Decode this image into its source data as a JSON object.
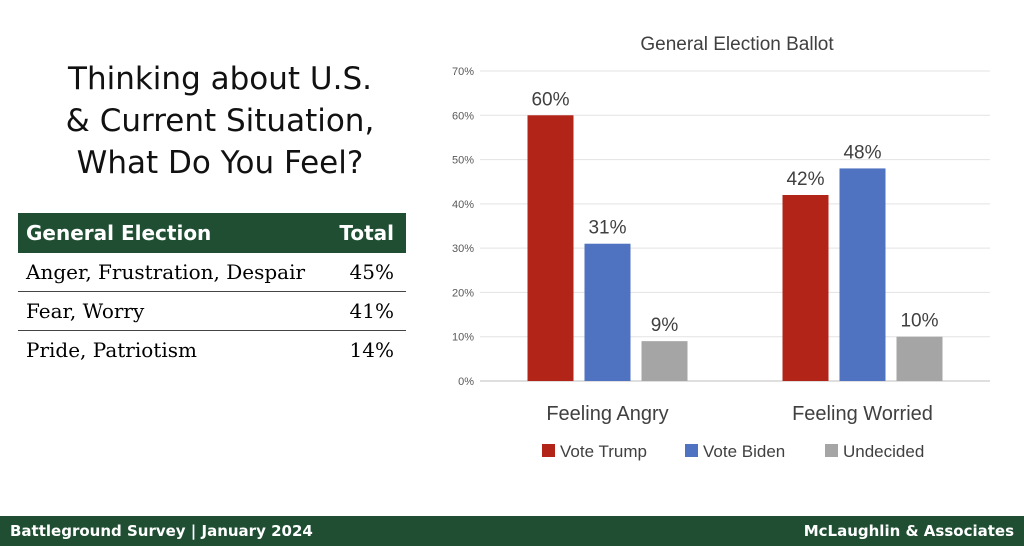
{
  "heading": {
    "line1": "Thinking about U.S.",
    "line2": "& Current Situation,",
    "line3": "What Do You Feel?"
  },
  "table": {
    "header": {
      "label": "General Election",
      "value": "Total"
    },
    "rows": [
      {
        "label": "Anger, Frustration, Despair",
        "value": "45%"
      },
      {
        "label": "Fear, Worry",
        "value": "41%"
      },
      {
        "label": "Pride, Patriotism",
        "value": "14%"
      }
    ]
  },
  "chart_data": {
    "type": "bar",
    "title": "General Election Ballot",
    "categories": [
      "Feeling Angry",
      "Feeling Worried"
    ],
    "series": [
      {
        "name": "Vote Trump",
        "values": [
          60,
          42
        ],
        "labels": [
          "60%",
          "42%"
        ],
        "color": "#b22418"
      },
      {
        "name": "Vote Biden",
        "values": [
          31,
          48
        ],
        "labels": [
          "31%",
          "48%"
        ],
        "color": "#4f72c1"
      },
      {
        "name": "Undecided",
        "values": [
          9,
          10
        ],
        "labels": [
          "9%",
          "10%"
        ],
        "color": "#a5a5a5"
      }
    ],
    "ylim": [
      0,
      70
    ],
    "yticks": [
      "0%",
      "10%",
      "20%",
      "30%",
      "40%",
      "50%",
      "60%",
      "70%"
    ],
    "grid": true,
    "legend": "bottom"
  },
  "footer": {
    "left": "Battleground Survey | January 2024",
    "right": "McLaughlin & Associates"
  }
}
